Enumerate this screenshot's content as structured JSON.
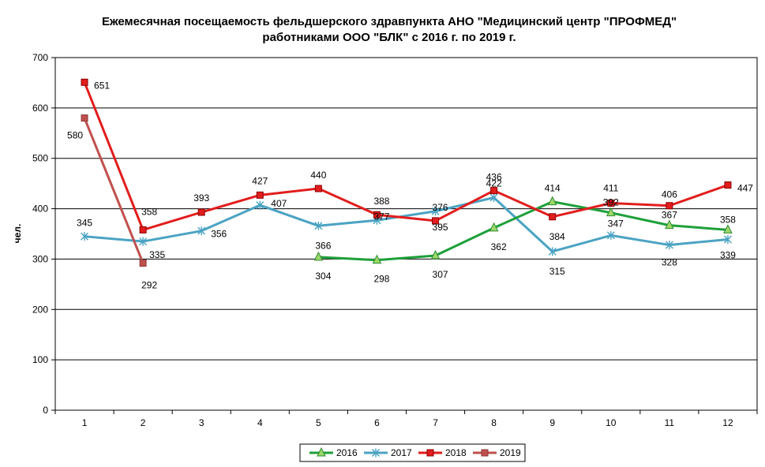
{
  "chart_data": {
    "type": "line",
    "title_line1": "Ежемесячная посещаемость фельдшерского здравпункта АНО \"Медицинский центр \"ПРОФМЕД\"",
    "title_line2": "работниками ООО \"БЛК\" с 2016 г. по 2019 г.",
    "ylabel": "чел.",
    "xlabel": "",
    "categories": [
      "1",
      "2",
      "3",
      "4",
      "5",
      "6",
      "7",
      "8",
      "9",
      "10",
      "11",
      "12"
    ],
    "ylim": [
      0,
      700
    ],
    "yticks": [
      "0",
      "100",
      "200",
      "300",
      "400",
      "500",
      "600",
      "700"
    ],
    "grid": "horizontal",
    "legend_position": "bottom",
    "series": [
      {
        "name": "2016",
        "color": "#1ea03a",
        "marker": "triangle",
        "values": [
          null,
          null,
          null,
          null,
          304,
          298,
          307,
          362,
          414,
          392,
          367,
          358
        ]
      },
      {
        "name": "2017",
        "color": "#4ba3c3",
        "marker": "star",
        "values": [
          345,
          335,
          356,
          407,
          366,
          377,
          395,
          422,
          315,
          347,
          328,
          339
        ]
      },
      {
        "name": "2018",
        "color": "#e21d1d",
        "marker": "square",
        "values": [
          651,
          358,
          393,
          427,
          440,
          388,
          376,
          436,
          384,
          411,
          406,
          447
        ]
      },
      {
        "name": "2019",
        "color": "#c0504d",
        "marker": "square",
        "values": [
          580,
          292,
          null,
          null,
          null,
          null,
          null,
          null,
          null,
          null,
          null,
          null
        ]
      }
    ]
  }
}
